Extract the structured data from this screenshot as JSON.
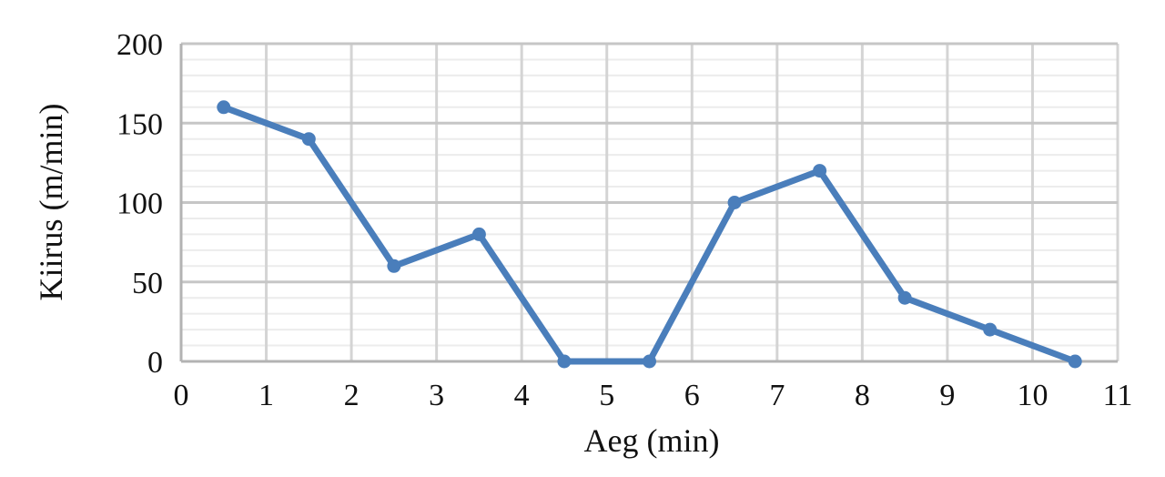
{
  "chart_data": {
    "type": "line",
    "title": "",
    "xlabel": "Aeg (min)",
    "ylabel": "Kiirus (m/min)",
    "xlim": [
      0,
      11
    ],
    "ylim": [
      0,
      200
    ],
    "x_ticks": [
      0,
      1,
      2,
      3,
      4,
      5,
      6,
      7,
      8,
      9,
      10,
      11
    ],
    "y_ticks": [
      0,
      50,
      100,
      150,
      200
    ],
    "y_minor_step": 10,
    "grid": true,
    "legend": "none",
    "series": [
      {
        "x": [
          0.5,
          1.5,
          2.5,
          3.5,
          4.5,
          5.5,
          6.5,
          7.5,
          8.5,
          9.5,
          10.5
        ],
        "y": [
          160,
          140,
          60,
          80,
          0,
          0,
          100,
          120,
          40,
          20,
          0
        ],
        "color": "#4a7ebb"
      }
    ]
  }
}
